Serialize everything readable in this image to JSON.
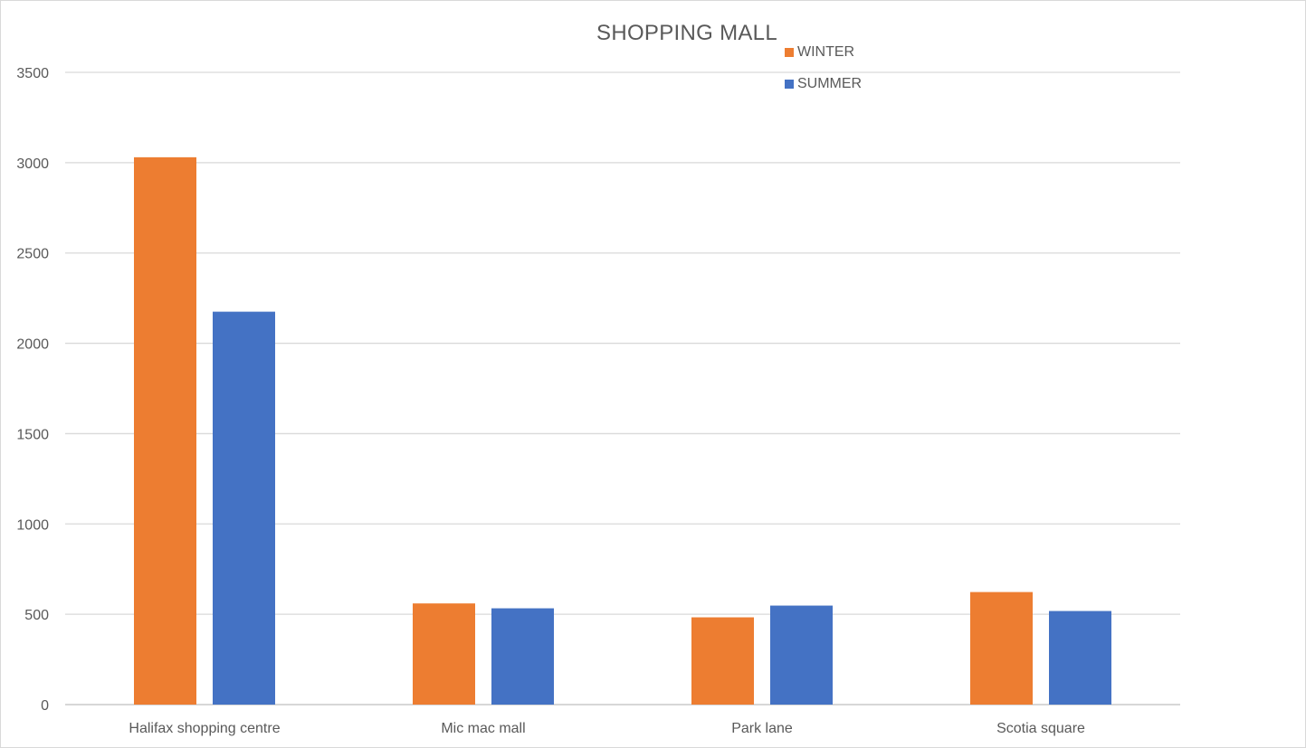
{
  "chart_data": {
    "type": "bar",
    "title": "SHOPPING MALL",
    "categories": [
      "Halifax shopping centre",
      "Mic mac mall",
      "Park lane",
      "Scotia square"
    ],
    "series": [
      {
        "name": "WINTER",
        "color": "#ED7D31",
        "values": [
          3030,
          560,
          483,
          623
        ]
      },
      {
        "name": "SUMMER",
        "color": "#4472C4",
        "values": [
          2175,
          533,
          548,
          518
        ]
      }
    ],
    "ylim": [
      0,
      3500
    ],
    "yticks": [
      0,
      500,
      1000,
      1500,
      2000,
      2500,
      3000,
      3500
    ],
    "xlabel": "",
    "ylabel": "",
    "grid": true,
    "legend_position": "top-right"
  }
}
